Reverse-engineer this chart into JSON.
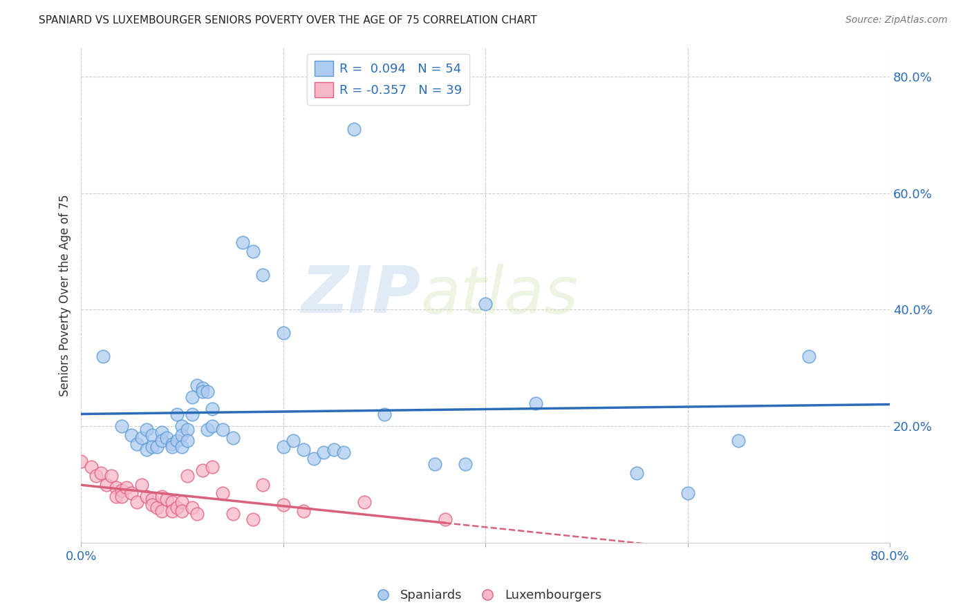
{
  "title": "SPANIARD VS LUXEMBOURGER SENIORS POVERTY OVER THE AGE OF 75 CORRELATION CHART",
  "source": "Source: ZipAtlas.com",
  "ylabel": "Seniors Poverty Over the Age of 75",
  "xlim": [
    0.0,
    0.8
  ],
  "ylim": [
    0.0,
    0.85
  ],
  "xticks": [
    0.0,
    0.2,
    0.4,
    0.6,
    0.8
  ],
  "yticks": [
    0.2,
    0.4,
    0.6,
    0.8
  ],
  "xticklabels": [
    "0.0%",
    "",
    "",
    "",
    "80.0%"
  ],
  "yticklabels": [
    "20.0%",
    "40.0%",
    "60.0%",
    "80.0%"
  ],
  "blue_R": 0.094,
  "blue_N": 54,
  "pink_R": -0.357,
  "pink_N": 39,
  "blue_color": "#AECBF0",
  "pink_color": "#F7B8C8",
  "blue_edge_color": "#5B9BD5",
  "pink_edge_color": "#E06080",
  "blue_line_color": "#2B6CB8",
  "pink_line_color": "#D9607A",
  "watermark_zip": "ZIP",
  "watermark_atlas": "atlas",
  "legend_spaniards": "Spaniards",
  "legend_luxembourgers": "Luxembourgers",
  "spaniards_x": [
    0.022,
    0.04,
    0.05,
    0.055,
    0.06,
    0.065,
    0.065,
    0.07,
    0.07,
    0.075,
    0.08,
    0.08,
    0.085,
    0.09,
    0.09,
    0.095,
    0.095,
    0.1,
    0.1,
    0.1,
    0.105,
    0.105,
    0.11,
    0.11,
    0.115,
    0.12,
    0.12,
    0.125,
    0.125,
    0.13,
    0.13,
    0.14,
    0.15,
    0.16,
    0.17,
    0.18,
    0.2,
    0.2,
    0.21,
    0.22,
    0.23,
    0.24,
    0.25,
    0.26,
    0.27,
    0.3,
    0.35,
    0.38,
    0.4,
    0.45,
    0.55,
    0.6,
    0.65,
    0.72
  ],
  "spaniards_y": [
    0.32,
    0.2,
    0.185,
    0.17,
    0.18,
    0.195,
    0.16,
    0.185,
    0.165,
    0.165,
    0.19,
    0.175,
    0.18,
    0.17,
    0.165,
    0.22,
    0.175,
    0.2,
    0.185,
    0.165,
    0.195,
    0.175,
    0.25,
    0.22,
    0.27,
    0.265,
    0.26,
    0.26,
    0.195,
    0.2,
    0.23,
    0.195,
    0.18,
    0.515,
    0.5,
    0.46,
    0.36,
    0.165,
    0.175,
    0.16,
    0.145,
    0.155,
    0.16,
    0.155,
    0.71,
    0.22,
    0.135,
    0.135,
    0.41,
    0.24,
    0.12,
    0.085,
    0.175,
    0.32
  ],
  "luxembourgers_x": [
    0.0,
    0.01,
    0.015,
    0.02,
    0.025,
    0.03,
    0.035,
    0.035,
    0.04,
    0.04,
    0.045,
    0.05,
    0.055,
    0.06,
    0.065,
    0.07,
    0.07,
    0.075,
    0.08,
    0.08,
    0.085,
    0.09,
    0.09,
    0.095,
    0.1,
    0.1,
    0.105,
    0.11,
    0.115,
    0.12,
    0.13,
    0.14,
    0.15,
    0.17,
    0.18,
    0.2,
    0.22,
    0.28,
    0.36
  ],
  "luxembourgers_y": [
    0.14,
    0.13,
    0.115,
    0.12,
    0.1,
    0.115,
    0.095,
    0.08,
    0.09,
    0.08,
    0.095,
    0.085,
    0.07,
    0.1,
    0.08,
    0.075,
    0.065,
    0.06,
    0.08,
    0.055,
    0.075,
    0.07,
    0.055,
    0.06,
    0.07,
    0.055,
    0.115,
    0.06,
    0.05,
    0.125,
    0.13,
    0.085,
    0.05,
    0.04,
    0.1,
    0.065,
    0.055,
    0.07,
    0.04
  ]
}
